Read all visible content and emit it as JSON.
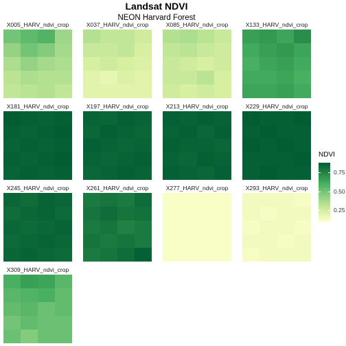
{
  "chart_data": {
    "type": "heatmap",
    "title": "Landsat NDVI",
    "subtitle": "NEON Harvard Forest",
    "legend": {
      "title": "NDVI",
      "position": "right",
      "ticks": [
        "0.75",
        "0.50",
        "0.25"
      ],
      "tick_values": [
        0.75,
        0.5,
        0.25
      ],
      "range": [
        0.1,
        0.88
      ]
    },
    "colors": [
      "#ffffcc",
      "#d9f0a3",
      "#addd8e",
      "#78c679",
      "#41ab5d",
      "#238443",
      "#005a32"
    ],
    "grid_columns": 4,
    "grid_rows": 5,
    "panels": [
      {
        "label": "X005_HARV_ndvi_crop",
        "values": [
          [
            0.5,
            0.55,
            0.58,
            0.4
          ],
          [
            0.42,
            0.5,
            0.46,
            0.38
          ],
          [
            0.36,
            0.42,
            0.38,
            0.36
          ],
          [
            0.32,
            0.36,
            0.34,
            0.34
          ],
          [
            0.3,
            0.32,
            0.34,
            0.3
          ]
        ]
      },
      {
        "label": "X037_HARV_ndvi_crop",
        "values": [
          [
            0.34,
            0.3,
            0.3,
            0.26
          ],
          [
            0.28,
            0.28,
            0.3,
            0.24
          ],
          [
            0.24,
            0.26,
            0.24,
            0.22
          ],
          [
            0.2,
            0.18,
            0.22,
            0.2
          ],
          [
            0.2,
            0.2,
            0.2,
            0.2
          ]
        ]
      },
      {
        "label": "X085_HARV_ndvi_crop",
        "values": [
          [
            0.34,
            0.36,
            0.32,
            0.28
          ],
          [
            0.3,
            0.32,
            0.28,
            0.26
          ],
          [
            0.28,
            0.26,
            0.24,
            0.26
          ],
          [
            0.28,
            0.28,
            0.32,
            0.24
          ],
          [
            0.26,
            0.24,
            0.26,
            0.24
          ]
        ]
      },
      {
        "label": "X133_HARV_ndvi_crop",
        "values": [
          [
            0.66,
            0.68,
            0.64,
            0.72
          ],
          [
            0.62,
            0.66,
            0.68,
            0.64
          ],
          [
            0.6,
            0.64,
            0.66,
            0.62
          ],
          [
            0.62,
            0.62,
            0.64,
            0.6
          ],
          [
            0.64,
            0.64,
            0.66,
            0.62
          ]
        ]
      },
      {
        "label": "X181_HARV_ndvi_crop",
        "values": [
          [
            0.87,
            0.86,
            0.85,
            0.86
          ],
          [
            0.86,
            0.85,
            0.86,
            0.87
          ],
          [
            0.85,
            0.86,
            0.85,
            0.86
          ],
          [
            0.86,
            0.85,
            0.86,
            0.87
          ],
          [
            0.85,
            0.86,
            0.85,
            0.86
          ]
        ]
      },
      {
        "label": "X197_HARV_ndvi_crop",
        "values": [
          [
            0.85,
            0.84,
            0.86,
            0.85
          ],
          [
            0.84,
            0.86,
            0.85,
            0.84
          ],
          [
            0.86,
            0.85,
            0.84,
            0.85
          ],
          [
            0.85,
            0.84,
            0.85,
            0.86
          ],
          [
            0.84,
            0.85,
            0.86,
            0.85
          ]
        ]
      },
      {
        "label": "X213_HARV_ndvi_crop",
        "values": [
          [
            0.86,
            0.85,
            0.86,
            0.85
          ],
          [
            0.85,
            0.86,
            0.84,
            0.86
          ],
          [
            0.86,
            0.85,
            0.85,
            0.84
          ],
          [
            0.85,
            0.84,
            0.86,
            0.85
          ],
          [
            0.86,
            0.85,
            0.84,
            0.86
          ]
        ]
      },
      {
        "label": "X229_HARV_ndvi_crop",
        "values": [
          [
            0.87,
            0.86,
            0.86,
            0.87
          ],
          [
            0.86,
            0.87,
            0.86,
            0.86
          ],
          [
            0.87,
            0.86,
            0.87,
            0.86
          ],
          [
            0.86,
            0.86,
            0.86,
            0.87
          ],
          [
            0.86,
            0.87,
            0.86,
            0.86
          ]
        ]
      },
      {
        "label": "X245_HARV_ndvi_crop",
        "values": [
          [
            0.84,
            0.82,
            0.85,
            0.84
          ],
          [
            0.82,
            0.84,
            0.85,
            0.83
          ],
          [
            0.84,
            0.83,
            0.84,
            0.85
          ],
          [
            0.83,
            0.84,
            0.85,
            0.84
          ],
          [
            0.84,
            0.85,
            0.84,
            0.83
          ]
        ]
      },
      {
        "label": "X261_HARV_ndvi_crop",
        "values": [
          [
            0.78,
            0.8,
            0.78,
            0.82
          ],
          [
            0.8,
            0.82,
            0.8,
            0.81
          ],
          [
            0.78,
            0.8,
            0.76,
            0.78
          ],
          [
            0.8,
            0.78,
            0.8,
            0.78
          ],
          [
            0.78,
            0.8,
            0.82,
            0.86
          ]
        ]
      },
      {
        "label": "X277_HARV_ndvi_crop",
        "values": [
          [
            0.12,
            0.12,
            0.12,
            0.12
          ],
          [
            0.12,
            0.12,
            0.12,
            0.12
          ],
          [
            0.12,
            0.12,
            0.12,
            0.12
          ],
          [
            0.12,
            0.12,
            0.12,
            0.12
          ],
          [
            0.12,
            0.12,
            0.12,
            0.12
          ]
        ]
      },
      {
        "label": "X293_HARV_ndvi_crop",
        "values": [
          [
            0.14,
            0.14,
            0.14,
            0.13
          ],
          [
            0.14,
            0.13,
            0.14,
            0.14
          ],
          [
            0.13,
            0.14,
            0.14,
            0.13
          ],
          [
            0.14,
            0.14,
            0.13,
            0.14
          ],
          [
            0.13,
            0.14,
            0.14,
            0.14
          ]
        ]
      },
      {
        "label": "X309_HARV_ndvi_crop",
        "values": [
          [
            0.6,
            0.66,
            0.64,
            0.56
          ],
          [
            0.56,
            0.58,
            0.6,
            0.54
          ],
          [
            0.54,
            0.56,
            0.52,
            0.54
          ],
          [
            0.5,
            0.54,
            0.52,
            0.52
          ],
          [
            0.52,
            0.46,
            0.52,
            0.52
          ]
        ]
      }
    ]
  }
}
